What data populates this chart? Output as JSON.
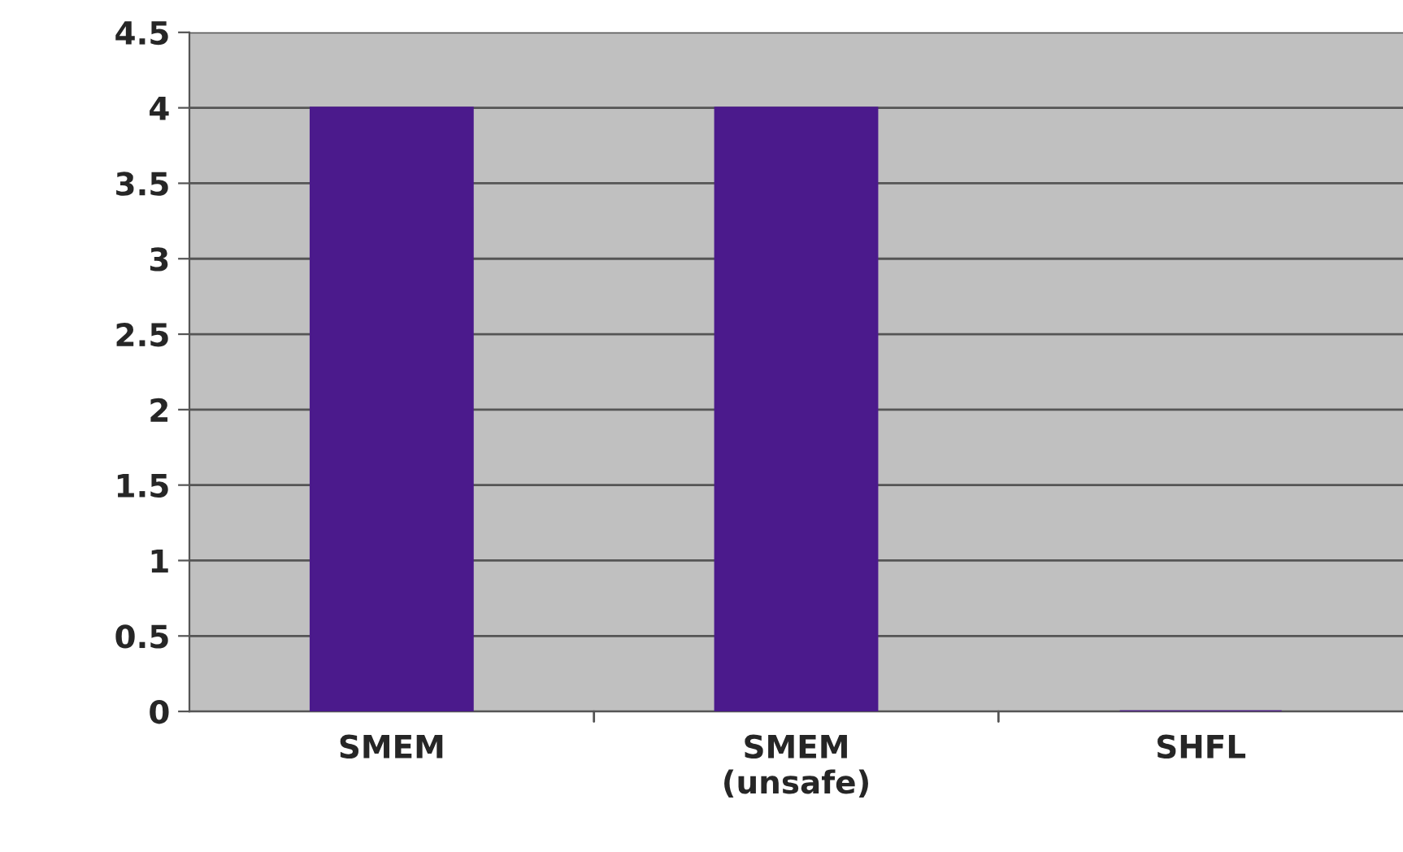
{
  "chart_data": {
    "type": "bar",
    "categories": [
      "SMEM",
      "SMEM\n(unsafe)",
      "SHFL"
    ],
    "values": [
      4,
      4,
      0
    ],
    "color": "#4b1a8c",
    "ylim": [
      0,
      4.5
    ],
    "yticks": [
      0,
      0.5,
      1,
      1.5,
      2,
      2.5,
      3,
      3.5,
      4,
      4.5
    ],
    "grid": "y",
    "legend": false
  }
}
